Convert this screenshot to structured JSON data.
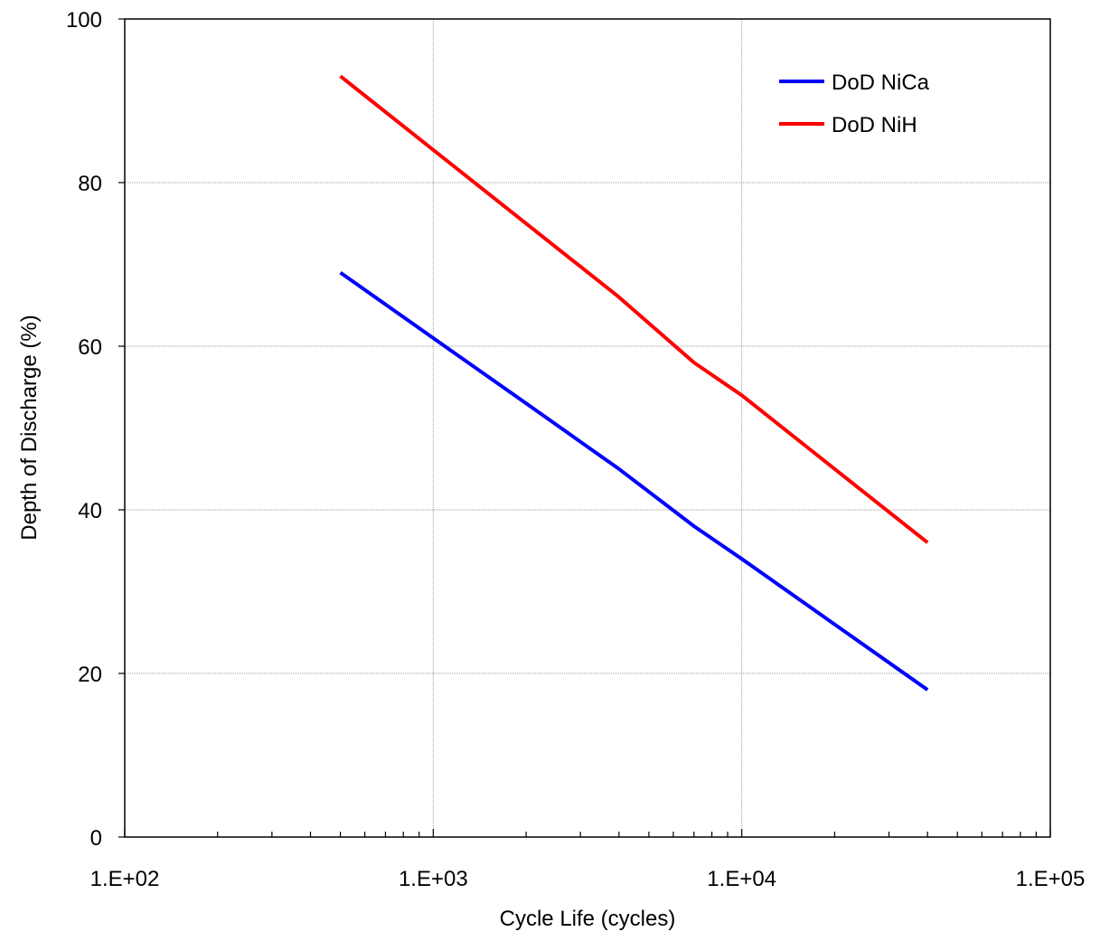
{
  "chart_data": {
    "type": "line",
    "xlabel": "Cycle Life (cycles)",
    "ylabel": "Depth of Discharge (%)",
    "xscale": "log",
    "xlim": [
      100,
      100000
    ],
    "ylim": [
      0,
      100
    ],
    "x_ticks": [
      100,
      1000,
      10000,
      100000
    ],
    "x_tick_labels": [
      "1.E+02",
      "1.E+03",
      "1.E+04",
      "1.E+05"
    ],
    "y_ticks": [
      0,
      20,
      40,
      60,
      80,
      100
    ],
    "y_tick_labels": [
      "0",
      "20",
      "40",
      "60",
      "80",
      "100"
    ],
    "grid": true,
    "legend_position": "top-right",
    "series": [
      {
        "name": "DoD NiCa",
        "color": "#0000ff",
        "x": [
          500,
          1000,
          2000,
          4000,
          7000,
          10000,
          20000,
          40000
        ],
        "y": [
          69,
          61,
          53,
          45,
          38,
          34,
          26,
          18
        ]
      },
      {
        "name": "DoD NiH",
        "color": "#ff0000",
        "x": [
          500,
          1000,
          2000,
          4000,
          7000,
          10000,
          20000,
          40000
        ],
        "y": [
          93,
          84,
          75,
          66,
          58,
          54,
          45,
          36
        ]
      }
    ]
  }
}
